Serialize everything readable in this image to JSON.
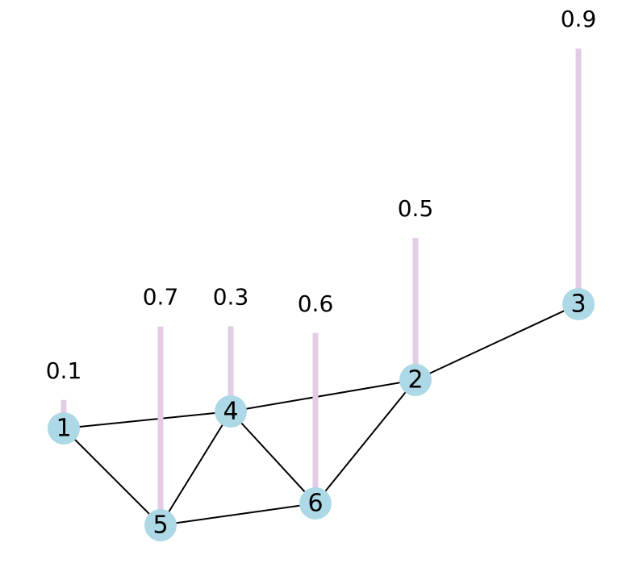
{
  "nodes": [
    {
      "label": "1",
      "value": 0.1
    },
    {
      "label": "2",
      "value": 0.5
    },
    {
      "label": "3",
      "value": 0.9
    },
    {
      "label": "4",
      "value": 0.3
    },
    {
      "label": "5",
      "value": 0.7
    },
    {
      "label": "6",
      "value": 0.6
    }
  ]
}
